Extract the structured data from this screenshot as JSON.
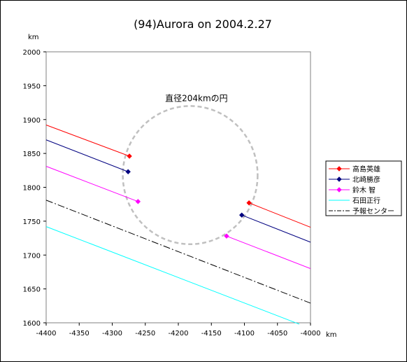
{
  "chart_data": {
    "type": "line",
    "title": "(94)Aurora on 2004.2.27",
    "xlabel": "km",
    "ylabel": "km",
    "xlim": [
      -4400,
      -4000
    ],
    "ylim": [
      1600,
      2000
    ],
    "xticks": [
      -4400,
      -4350,
      -4300,
      -4250,
      -4200,
      -4150,
      -4100,
      -4050,
      -4000
    ],
    "yticks": [
      1600,
      1650,
      1700,
      1750,
      1800,
      1850,
      1900,
      1950,
      2000
    ],
    "grid": false,
    "legend_position": "right",
    "annotation": {
      "text": "直径204kmの円",
      "x": -4220,
      "y": 1927
    },
    "circle": {
      "center": [
        -4182,
        1818
      ],
      "radius": 102,
      "style": "dashed",
      "color": "#c0c0c0"
    },
    "series": [
      {
        "name": "高島英雄",
        "color": "#ff0000",
        "style": "solid",
        "marker": "diamond",
        "segments": [
          {
            "points": [
              [
                -4400,
                1892
              ],
              [
                -4274,
                1846
              ]
            ],
            "marker_at": [
              -4274,
              1846
            ]
          },
          {
            "points": [
              [
                -4093,
                1777
              ],
              [
                -4000,
                1741
              ]
            ],
            "marker_at": [
              -4093,
              1777
            ]
          }
        ]
      },
      {
        "name": "北崎勝彦",
        "color": "#000080",
        "style": "solid",
        "marker": "diamond",
        "segments": [
          {
            "points": [
              [
                -4400,
                1870
              ],
              [
                -4276,
                1823
              ]
            ],
            "marker_at": [
              -4276,
              1823
            ]
          },
          {
            "points": [
              [
                -4104,
                1759
              ],
              [
                -4000,
                1719
              ]
            ],
            "marker_at": [
              -4104,
              1759
            ]
          }
        ]
      },
      {
        "name": "鈴木 智",
        "color": "#ff00ff",
        "style": "solid",
        "marker": "diamond",
        "segments": [
          {
            "points": [
              [
                -4400,
                1831
              ],
              [
                -4261,
                1779
              ]
            ],
            "marker_at": [
              -4261,
              1779
            ]
          },
          {
            "points": [
              [
                -4127,
                1728
              ],
              [
                -4000,
                1680
              ]
            ],
            "marker_at": [
              -4127,
              1728
            ]
          }
        ]
      },
      {
        "name": "石田正行",
        "color": "#00ffff",
        "style": "solid",
        "marker": "none",
        "segments": [
          {
            "points": [
              [
                -4400,
                1742
              ],
              [
                -4017,
                1598
              ]
            ]
          }
        ]
      },
      {
        "name": "予報センター",
        "color": "#000000",
        "style": "dashdot",
        "marker": "none",
        "segments": [
          {
            "points": [
              [
                -4400,
                1781
              ],
              [
                -4000,
                1629
              ]
            ]
          }
        ]
      }
    ]
  }
}
